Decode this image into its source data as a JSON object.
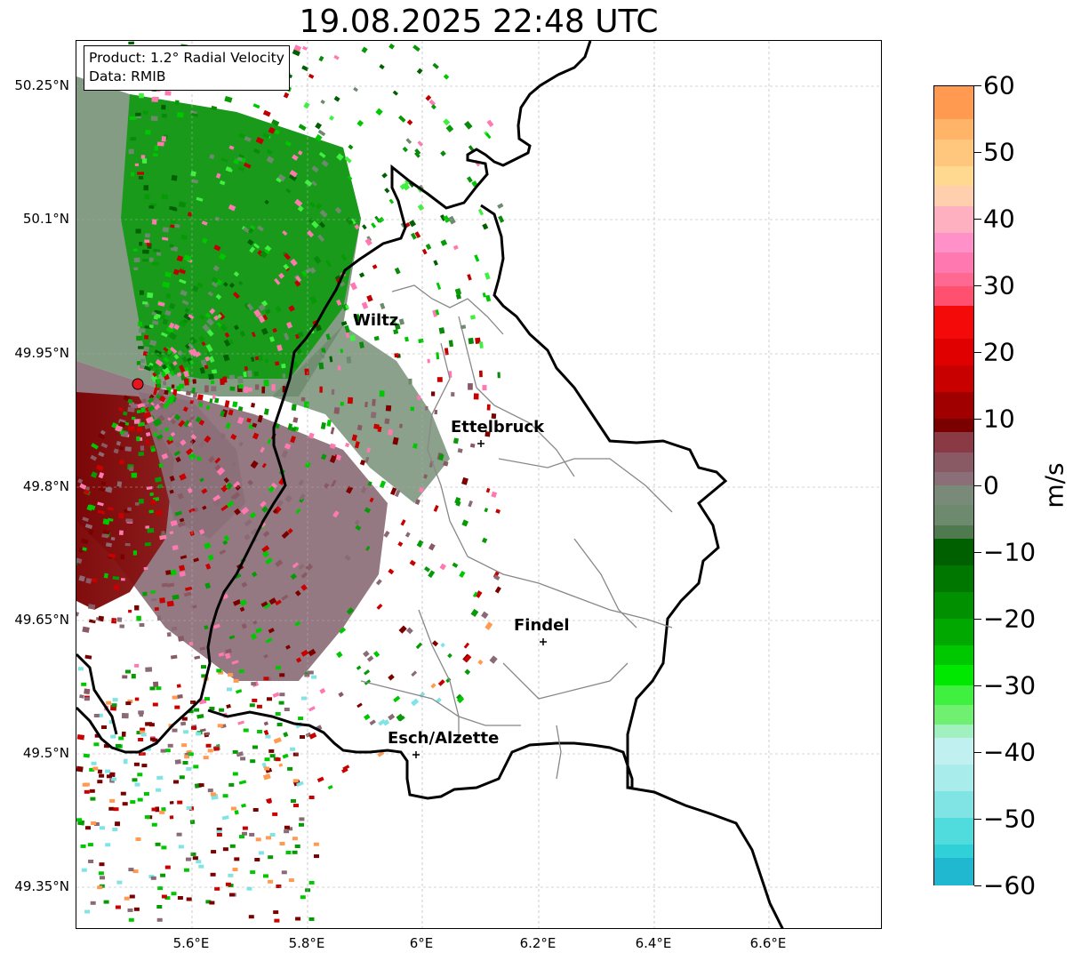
{
  "title": "19.08.2025 22:48 UTC",
  "info_box": {
    "product": "Product: 1.2° Radial Velocity",
    "data": "Data: RMIB"
  },
  "axes": {
    "lon_ticks": [
      "5.6°E",
      "5.8°E",
      "6°E",
      "6.2°E",
      "6.4°E",
      "6.6°E"
    ],
    "lat_ticks": [
      "50.25°N",
      "50.1°N",
      "49.95°N",
      "49.8°N",
      "49.65°N",
      "49.5°N",
      "49.35°N"
    ],
    "grid": true
  },
  "cities": [
    {
      "name": "Wiltz"
    },
    {
      "name": "Ettelbruck"
    },
    {
      "name": "Findel"
    },
    {
      "name": "Esch/Alzette"
    }
  ],
  "colorbar": {
    "unit": "m/s",
    "min": -60,
    "max": 60,
    "tick_labels": [
      "60",
      "50",
      "40",
      "30",
      "20",
      "10",
      "0",
      "−10",
      "−20",
      "−30",
      "−40",
      "−50",
      "−60"
    ]
  },
  "colors": {
    "approaching_green": "#079a07",
    "receding_red": "#8b0000",
    "near_zero_gray_green": "#6e8a6e",
    "near_zero_gray_mauve": "#8a6a74",
    "radar_site": "#e8141e",
    "border": "#000000",
    "canton_border": "#888888"
  }
}
